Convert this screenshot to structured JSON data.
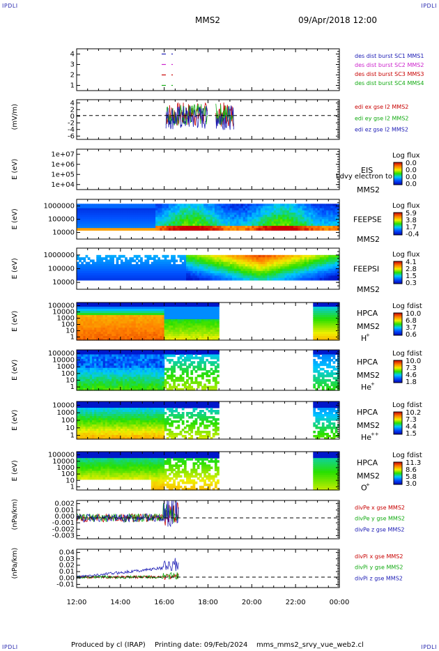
{
  "header": {
    "corner_mark": "IPDLI",
    "spacecraft": "MMS2",
    "date_time": "09/Apr/2018 12:00"
  },
  "footer": {
    "credit": "Produced by cl (IRAP)",
    "printing": "Printing date: 09/Feb/2024",
    "filename": "mms_mms2_srvy_vue_web2.cl"
  },
  "chart_data": [
    {
      "type": "line",
      "panel": "burst-flags",
      "ylim": [
        0.5,
        4.5
      ],
      "yticks": [
        "4",
        "3",
        "2",
        "1"
      ],
      "series": [
        {
          "name": "des dist burst SC1 MMS1",
          "color": "#1a1ab4",
          "y": 4
        },
        {
          "name": "des dist burst SC2 MMS2",
          "color": "#cc22cc",
          "y": 3
        },
        {
          "name": "des dist burst SC3 MMS3",
          "color": "#c80000",
          "y": 2
        },
        {
          "name": "des dist burst SC4 MMS4",
          "color": "#11aa11",
          "y": 1
        }
      ]
    },
    {
      "type": "line",
      "panel": "edi-efield",
      "ylabel": "(mV/m)",
      "ylim": [
        -6,
        4
      ],
      "yticks": [
        "4",
        "2",
        "0",
        "-2",
        "-4",
        "-6"
      ],
      "series": [
        {
          "name": "edi ex gse l2 MMS2",
          "color": "#c80000"
        },
        {
          "name": "edi ey gse l2 MMS2",
          "color": "#11aa11"
        },
        {
          "name": "edi ez gse l2 MMS2",
          "color": "#1a1ab4"
        }
      ]
    },
    {
      "type": "heatmap",
      "panel": "eis",
      "ylabel": "E (eV)",
      "yticks": [
        "1e+07",
        "1e+06",
        "1e+05",
        "1e+04"
      ],
      "instrument": "EIS",
      "spacecraft": "MMS2",
      "overlay_text": "Ldvy electron to",
      "colorbar_title": "Log flux",
      "colorbar_ticks": [
        "0.0",
        "0.0",
        "0.0",
        "0.0"
      ]
    },
    {
      "type": "heatmap",
      "panel": "feepse",
      "ylabel": "E (eV)",
      "yticks": [
        "1000000",
        "100000",
        "10000"
      ],
      "instrument": "FEEPSE",
      "spacecraft": "MMS2",
      "colorbar_title": "Log flux",
      "colorbar_ticks": [
        "5.9",
        "3.8",
        "1.7",
        "-0.4"
      ]
    },
    {
      "type": "heatmap",
      "panel": "feepsi",
      "ylabel": "E (eV)",
      "yticks": [
        "1000000",
        "100000",
        "10000"
      ],
      "instrument": "FEEPSI",
      "spacecraft": "MMS2",
      "colorbar_title": "Log flux",
      "colorbar_ticks": [
        "4.1",
        "2.8",
        "1.5",
        "0.3"
      ]
    },
    {
      "type": "heatmap",
      "panel": "hpca-h",
      "ylabel": "E (eV)",
      "yticks": [
        "100000",
        "10000",
        "1000",
        "100",
        "10",
        "1"
      ],
      "instrument": "HPCA",
      "spacecraft": "MMS2",
      "species": "H",
      "charge": "+",
      "colorbar_title": "Log fdist",
      "colorbar_ticks": [
        "10.0",
        "6.8",
        "3.7",
        "0.6"
      ]
    },
    {
      "type": "heatmap",
      "panel": "hpca-he",
      "ylabel": "E (eV)",
      "yticks": [
        "100000",
        "10000",
        "1000",
        "100",
        "10",
        "1"
      ],
      "instrument": "HPCA",
      "spacecraft": "MMS2",
      "species": "He",
      "charge": "+",
      "colorbar_title": "Log fdist",
      "colorbar_ticks": [
        "10.0",
        "7.3",
        "4.6",
        "1.8"
      ]
    },
    {
      "type": "heatmap",
      "panel": "hpca-he2",
      "ylabel": "E (eV)",
      "yticks": [
        "10000",
        "1000",
        "100",
        "10",
        "1"
      ],
      "instrument": "HPCA",
      "spacecraft": "MMS2",
      "species": "He",
      "charge": "++",
      "colorbar_title": "Log fdist",
      "colorbar_ticks": [
        "10.2",
        "7.3",
        "4.4",
        "1.5"
      ]
    },
    {
      "type": "heatmap",
      "panel": "hpca-o",
      "ylabel": "E (eV)",
      "yticks": [
        "100000",
        "10000",
        "1000",
        "100",
        "10",
        "1"
      ],
      "instrument": "HPCA",
      "spacecraft": "MMS2",
      "species": "O",
      "charge": "+",
      "colorbar_title": "Log fdist",
      "colorbar_ticks": [
        "11.3",
        "8.6",
        "5.8",
        "3.0"
      ]
    },
    {
      "type": "line",
      "panel": "divpe",
      "ylabel": "(nPa/km)",
      "ylim": [
        -0.003,
        0.0025
      ],
      "yticks": [
        "0.002",
        "0.001",
        "0.000",
        "-0.001",
        "-0.002",
        "-0.003"
      ],
      "series": [
        {
          "name": "divPe x gse MMS2",
          "color": "#c80000"
        },
        {
          "name": "divPe y gse MMS2",
          "color": "#11aa11"
        },
        {
          "name": "divPe z gse MMS2",
          "color": "#1a1ab4"
        }
      ]
    },
    {
      "type": "line",
      "panel": "divpi",
      "ylabel": "(nPa/km)",
      "ylim": [
        -0.015,
        0.04
      ],
      "yticks": [
        "0.04",
        "0.03",
        "0.02",
        "0.01",
        "0.00",
        "-0.01"
      ],
      "series": [
        {
          "name": "divPi x gse MMS2",
          "color": "#c80000"
        },
        {
          "name": "divPi y gse MMS2",
          "color": "#11aa11"
        },
        {
          "name": "divPi z gse MMS2",
          "color": "#1a1ab4"
        }
      ]
    }
  ],
  "time_axis": {
    "ticks": [
      "12:00",
      "14:00",
      "16:00",
      "18:00",
      "20:00",
      "22:00",
      "00:00"
    ]
  }
}
